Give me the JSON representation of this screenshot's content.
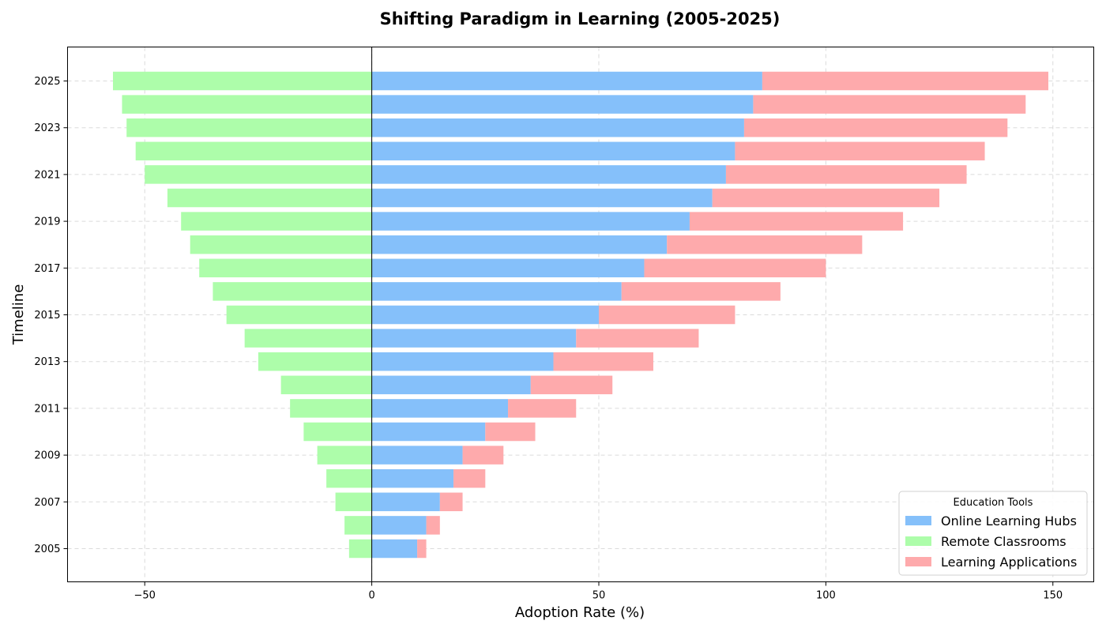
{
  "chart_data": {
    "type": "bar",
    "orientation": "horizontal",
    "title": "Shifting Paradigm in Learning (2005-2025)",
    "xlabel": "Adoption Rate (%)",
    "ylabel": "Timeline",
    "xlim": [
      -67,
      159
    ],
    "xticks": [
      -50,
      0,
      50,
      100,
      150
    ],
    "xtick_labels": [
      "−50",
      "0",
      "50",
      "100",
      "150"
    ],
    "categories": [
      "2005",
      "2006",
      "2007",
      "2008",
      "2009",
      "2010",
      "2011",
      "2012",
      "2013",
      "2014",
      "2015",
      "2016",
      "2017",
      "2018",
      "2019",
      "2020",
      "2021",
      "2022",
      "2023",
      "2024",
      "2025"
    ],
    "ytick_labels": [
      "2005",
      "2007",
      "2009",
      "2011",
      "2013",
      "2015",
      "2017",
      "2019",
      "2021",
      "2023",
      "2025"
    ],
    "grid": true,
    "legend": {
      "title": "Education Tools",
      "placement": "lower-right"
    },
    "series": [
      {
        "name": "Online Learning Hubs",
        "color": "#85c0fa",
        "stack": "right",
        "values": [
          10,
          12,
          15,
          18,
          20,
          25,
          30,
          35,
          40,
          45,
          50,
          55,
          60,
          65,
          70,
          75,
          78,
          80,
          82,
          84,
          86
        ]
      },
      {
        "name": "Remote Classrooms",
        "color": "#adfdaa",
        "stack": "left",
        "values": [
          -5,
          -6,
          -8,
          -10,
          -12,
          -15,
          -18,
          -20,
          -25,
          -28,
          -32,
          -35,
          -38,
          -40,
          -42,
          -45,
          -50,
          -52,
          -54,
          -55,
          -57
        ]
      },
      {
        "name": "Learning Applications",
        "color": "#feaaac",
        "stack": "right",
        "values": [
          2,
          3,
          5,
          7,
          9,
          11,
          15,
          18,
          22,
          27,
          30,
          35,
          40,
          43,
          47,
          50,
          53,
          55,
          58,
          60,
          63
        ]
      }
    ]
  }
}
